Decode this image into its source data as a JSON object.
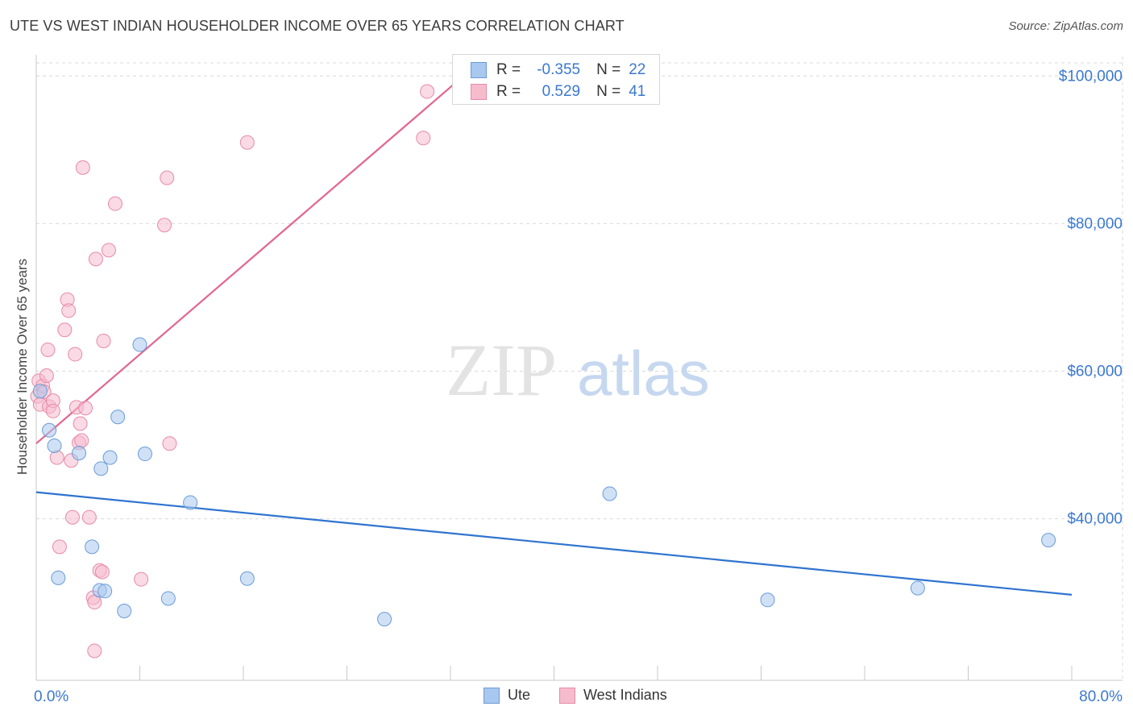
{
  "title": "UTE VS WEST INDIAN HOUSEHOLDER INCOME OVER 65 YEARS CORRELATION CHART",
  "source": "Source: ZipAtlas.com",
  "watermark": {
    "zip": "ZIP",
    "atlas": "atlas"
  },
  "legend_top": [
    {
      "r_label": "R =",
      "r_value": "-0.355",
      "n_label": "N =",
      "n_value": "22"
    },
    {
      "r_label": "R =",
      "r_value": "0.529",
      "n_label": "N =",
      "n_value": "41"
    }
  ],
  "legend_bottom": [
    {
      "label": "Ute"
    },
    {
      "label": "West Indians"
    }
  ],
  "colors": {
    "ute_fill": "#a9c8ef",
    "ute_stroke": "#6a9bd8",
    "ute_line": "#2f74d0",
    "wi_fill": "#f6bccd",
    "wi_stroke": "#e88aa8",
    "wi_line": "#e2668f",
    "axis_text": "#3b78d0",
    "grid": "#d9d9d9"
  },
  "chart_data": {
    "type": "scatter",
    "title": "UTE VS WEST INDIAN HOUSEHOLDER INCOME OVER 65 YEARS CORRELATION CHART",
    "xlabel": "",
    "ylabel": "Householder Income Over 65 years",
    "xlim": [
      0,
      80
    ],
    "ylim": [
      18000,
      102000
    ],
    "x_tick_labels": [
      {
        "value": 0,
        "label": "0.0%"
      },
      {
        "value": 80,
        "label": "80.0%"
      }
    ],
    "y_ticks": [
      {
        "value": 40000,
        "label": "$40,000"
      },
      {
        "value": 60000,
        "label": "$60,000"
      },
      {
        "value": 80000,
        "label": "$80,000"
      },
      {
        "value": 100000,
        "label": "$100,000"
      }
    ],
    "series": [
      {
        "name": "Ute",
        "r": -0.355,
        "n": 22,
        "trend": {
          "x1": 0,
          "y1": 43600,
          "x2": 80,
          "y2": 29700
        },
        "points": [
          [
            0.3,
            57300
          ],
          [
            1.0,
            52000
          ],
          [
            1.4,
            49900
          ],
          [
            1.7,
            32000
          ],
          [
            3.3,
            48900
          ],
          [
            4.3,
            36200
          ],
          [
            4.9,
            30300
          ],
          [
            5.0,
            46800
          ],
          [
            5.3,
            30200
          ],
          [
            5.7,
            48300
          ],
          [
            6.3,
            53800
          ],
          [
            6.8,
            27500
          ],
          [
            8.0,
            63600
          ],
          [
            8.4,
            48800
          ],
          [
            10.2,
            29200
          ],
          [
            11.9,
            42200
          ],
          [
            16.3,
            31900
          ],
          [
            26.9,
            26400
          ],
          [
            44.3,
            43400
          ],
          [
            56.5,
            29000
          ],
          [
            68.1,
            30600
          ],
          [
            78.2,
            37100
          ]
        ]
      },
      {
        "name": "West Indians",
        "r": 0.529,
        "n": 41,
        "trend": {
          "x1": 0,
          "y1": 50200,
          "x2": 33,
          "y2": 100000
        },
        "points": [
          [
            0.1,
            56600
          ],
          [
            0.2,
            58700
          ],
          [
            0.3,
            55500
          ],
          [
            0.5,
            58000
          ],
          [
            0.6,
            57200
          ],
          [
            0.8,
            59400
          ],
          [
            0.9,
            62900
          ],
          [
            1.0,
            55200
          ],
          [
            1.3,
            56000
          ],
          [
            1.3,
            54600
          ],
          [
            1.6,
            48300
          ],
          [
            1.8,
            36200
          ],
          [
            2.2,
            65600
          ],
          [
            2.4,
            69700
          ],
          [
            2.5,
            68200
          ],
          [
            2.7,
            47900
          ],
          [
            2.8,
            40200
          ],
          [
            3.0,
            62300
          ],
          [
            3.1,
            55100
          ],
          [
            3.3,
            50300
          ],
          [
            3.4,
            52900
          ],
          [
            3.5,
            50600
          ],
          [
            3.6,
            87600
          ],
          [
            3.8,
            55000
          ],
          [
            4.1,
            40200
          ],
          [
            4.4,
            29300
          ],
          [
            4.5,
            28700
          ],
          [
            4.5,
            22100
          ],
          [
            4.6,
            75200
          ],
          [
            4.9,
            33000
          ],
          [
            5.1,
            32800
          ],
          [
            5.2,
            64100
          ],
          [
            5.6,
            76400
          ],
          [
            6.1,
            82700
          ],
          [
            8.1,
            31800
          ],
          [
            9.9,
            79800
          ],
          [
            10.1,
            86200
          ],
          [
            10.3,
            50200
          ],
          [
            16.3,
            91000
          ],
          [
            29.9,
            91600
          ],
          [
            30.2,
            97900
          ]
        ]
      }
    ]
  }
}
